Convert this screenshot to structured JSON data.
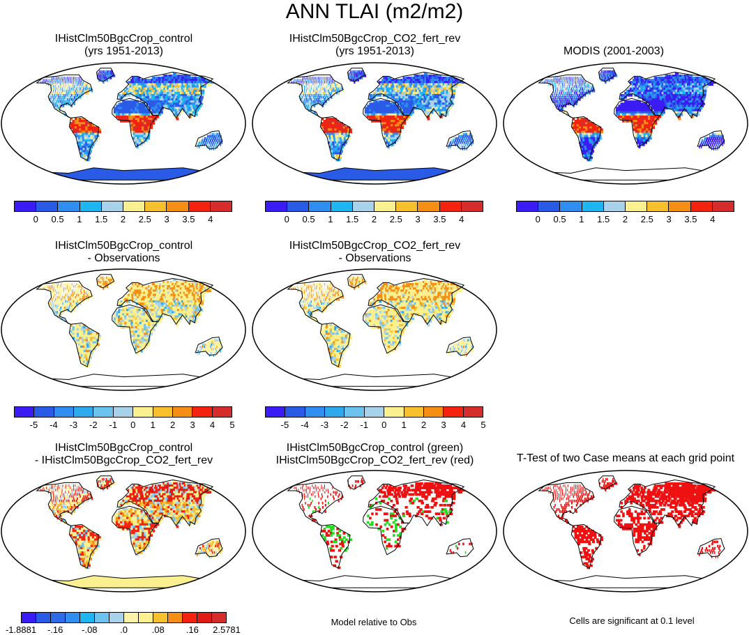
{
  "title": "ANN TLAI (m2/m2)",
  "colors": {
    "lai": [
      "#3b1cf4",
      "#2a5be6",
      "#2f8ef0",
      "#1eb5f0",
      "#a7d2ea",
      "#fbf08f",
      "#f6c02f",
      "#f58e14",
      "#f3230f",
      "#d52c2c"
    ],
    "diff": [
      "#3b1cf4",
      "#2a5be6",
      "#2f8ef0",
      "#30a8ec",
      "#6cc3ee",
      "#a7d2ea",
      "#fbf08f",
      "#f6c02f",
      "#f58e14",
      "#f3230f",
      "#d52c2c"
    ],
    "mdiff": [
      "#3b1cf4",
      "#2a5be6",
      "#2f6ae8",
      "#2f8ef0",
      "#1eb5f0",
      "#6cc3ee",
      "#a7d2ea",
      "#fdf3a8",
      "#fbf08f",
      "#f6c02f",
      "#f58e14",
      "#f3230f",
      "#e01a14",
      "#d52c2c"
    ],
    "green": "#22dd22",
    "red": "#ee1111"
  },
  "panels": {
    "p1": {
      "title1": "IHistClm50BgcCrop_control",
      "title2": "(yrs 1951-2013)"
    },
    "p2": {
      "title1": "IHistClm50BgcCrop_CO2_fert_rev",
      "title2": "(yrs 1951-2013)"
    },
    "p3": {
      "title1": "MODIS (2001-2003)"
    },
    "p4": {
      "title1": "IHistClm50BgcCrop_control",
      "title2": "- Observations"
    },
    "p5": {
      "title1": "IHistClm50BgcCrop_CO2_fert_rev",
      "title2": "- Observations"
    },
    "p6": {
      "title1": "IHistClm50BgcCrop_control",
      "title2": "- IHistClm50BgcCrop_CO2_fert_rev"
    },
    "p7": {
      "title1": "IHistClm50BgcCrop_control (green)",
      "title2": "IHistClm50BgcCrop_CO2_fert_rev (red)"
    },
    "p8": {
      "title1": "T-Test of two Case means at each grid point"
    }
  },
  "legends": {
    "lai_ticks": [
      "0",
      "0.5",
      "1",
      "1.5",
      "2",
      "2.5",
      "3",
      "3.5",
      "4"
    ],
    "diff_ticks": [
      "-5",
      "-4",
      "-3",
      "-2",
      "-1",
      "0",
      "1",
      "2",
      "3",
      "4",
      "5"
    ],
    "mdiff_ticks": [
      "-1.8881",
      "-.16",
      "-.08",
      ".0",
      ".08",
      ".16",
      "2.5781"
    ]
  },
  "notes": {
    "model_rel": "Model relative to Obs",
    "cells_sig": "Cells are significant at 0.1 level"
  }
}
